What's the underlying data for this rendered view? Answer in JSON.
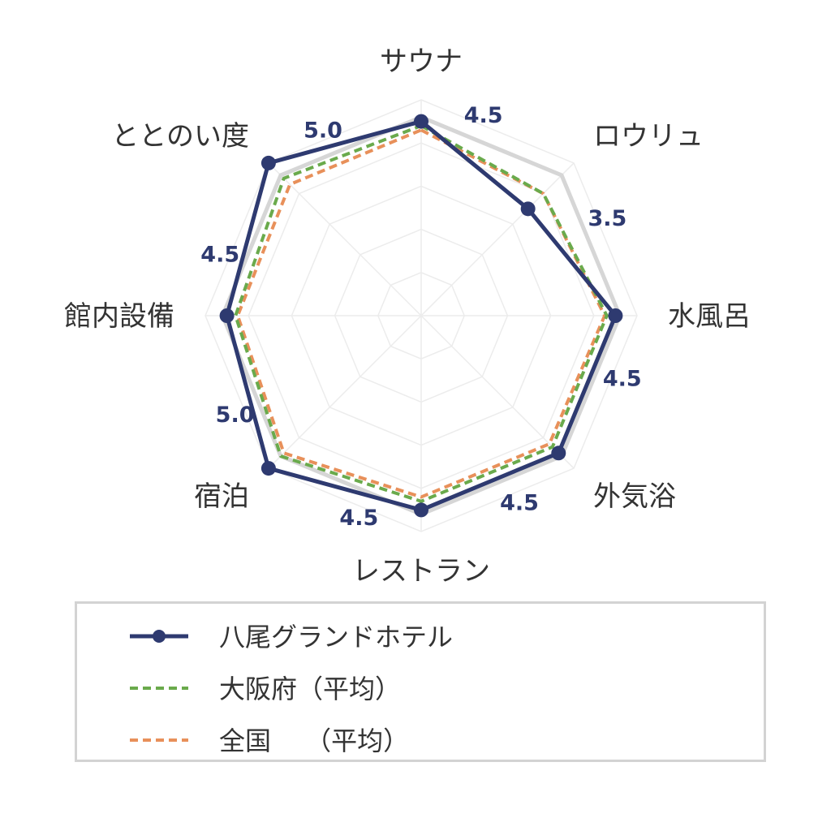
{
  "chart_data": {
    "type": "radar",
    "categories": [
      "サウナ",
      "ロウリュ",
      "水風呂",
      "外気浴",
      "レストラン",
      "宿泊",
      "館内設備",
      "ととのい度"
    ],
    "rmax": 5,
    "grid_levels": [
      1,
      2,
      3,
      4,
      5
    ],
    "value_labels": [
      "4.5",
      "3.5",
      "4.5",
      "4.5",
      "4.5",
      "5.0",
      "4.5",
      "5.0"
    ],
    "series": [
      {
        "name": "八尾グランドホテル",
        "values": [
          4.5,
          3.5,
          4.5,
          4.5,
          4.5,
          5.0,
          4.5,
          5.0
        ],
        "color": "#2e3a70",
        "style": "solid-markers"
      },
      {
        "name": "大阪府（平均）",
        "values": [
          4.4,
          4.0,
          4.3,
          4.3,
          4.3,
          4.6,
          4.3,
          4.5
        ],
        "color": "#6aaa4c",
        "style": "dashed"
      },
      {
        "name": "全国　 （平均）",
        "values": [
          4.3,
          4.0,
          4.25,
          4.2,
          4.2,
          4.5,
          4.25,
          4.3
        ],
        "color": "#e8905a",
        "style": "dashed"
      }
    ],
    "reference_ring_value": 4.6,
    "legend_position": "bottom"
  }
}
